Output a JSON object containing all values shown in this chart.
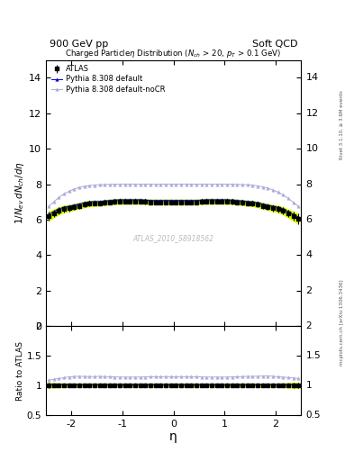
{
  "title_top_left": "900 GeV pp",
  "title_top_right": "Soft QCD",
  "plot_title": "Charged Particleη Distribution (N_{ch} > 20, p_{T} > 0.1 GeV)",
  "ylabel_main": "1/N_{ev} dN_{ch}/dη",
  "ylabel_ratio": "Ratio to ATLAS",
  "xlabel": "η",
  "right_label_top": "Rivet 3.1.10, ≥ 3.6M events",
  "right_label_bottom": "mcplots.cern.ch [arXiv:1306.3436]",
  "watermark": "ATLAS_2010_S8918562",
  "ylim_main": [
    0,
    15
  ],
  "ylim_ratio": [
    0.5,
    2.0
  ],
  "xlim": [
    -2.5,
    2.5
  ],
  "yticks_main": [
    0,
    2,
    4,
    6,
    8,
    10,
    12,
    14
  ],
  "yticks_ratio": [
    0.5,
    1.0,
    1.5,
    2.0
  ],
  "ytick_labels_ratio": [
    "0.5",
    "1",
    "1.5",
    "2"
  ],
  "legend_entries": [
    "ATLAS",
    "Pythia 8.308 default",
    "Pythia 8.308 default-noCR"
  ],
  "atlas_color": "#000000",
  "pythia_default_color": "#0000dd",
  "pythia_nocr_color": "#aaaadd",
  "band_color_atlas": "#ddff00",
  "band_color_pythia": "#88cc00",
  "eta_atlas": [
    -2.45,
    -2.35,
    -2.25,
    -2.15,
    -2.05,
    -1.95,
    -1.85,
    -1.75,
    -1.65,
    -1.55,
    -1.45,
    -1.35,
    -1.25,
    -1.15,
    -1.05,
    -0.95,
    -0.85,
    -0.75,
    -0.65,
    -0.55,
    -0.45,
    -0.35,
    -0.25,
    -0.15,
    -0.05,
    0.05,
    0.15,
    0.25,
    0.35,
    0.45,
    0.55,
    0.65,
    0.75,
    0.85,
    0.95,
    1.05,
    1.15,
    1.25,
    1.35,
    1.45,
    1.55,
    1.65,
    1.75,
    1.85,
    1.95,
    2.05,
    2.15,
    2.25,
    2.35,
    2.45
  ],
  "atlas_vals": [
    6.2,
    6.35,
    6.5,
    6.6,
    6.65,
    6.72,
    6.78,
    6.85,
    6.9,
    6.92,
    6.92,
    6.95,
    6.98,
    7.0,
    7.02,
    7.02,
    7.02,
    7.02,
    7.02,
    7.0,
    6.98,
    6.98,
    6.98,
    6.98,
    6.98,
    6.98,
    6.98,
    6.98,
    6.98,
    6.98,
    7.0,
    7.02,
    7.02,
    7.02,
    7.02,
    7.02,
    7.0,
    6.98,
    6.95,
    6.92,
    6.9,
    6.85,
    6.78,
    6.72,
    6.65,
    6.6,
    6.5,
    6.35,
    6.2,
    6.05
  ],
  "atlas_err": [
    0.25,
    0.22,
    0.2,
    0.18,
    0.17,
    0.16,
    0.15,
    0.15,
    0.14,
    0.13,
    0.13,
    0.12,
    0.12,
    0.12,
    0.12,
    0.12,
    0.12,
    0.12,
    0.12,
    0.12,
    0.12,
    0.12,
    0.12,
    0.12,
    0.12,
    0.12,
    0.12,
    0.12,
    0.12,
    0.12,
    0.12,
    0.12,
    0.12,
    0.12,
    0.12,
    0.12,
    0.12,
    0.12,
    0.12,
    0.13,
    0.13,
    0.14,
    0.15,
    0.16,
    0.17,
    0.18,
    0.2,
    0.22,
    0.25,
    0.28
  ],
  "pythia_default_vals": [
    6.3,
    6.45,
    6.6,
    6.7,
    6.75,
    6.82,
    6.88,
    6.95,
    7.0,
    7.02,
    7.02,
    7.05,
    7.08,
    7.1,
    7.12,
    7.12,
    7.12,
    7.12,
    7.12,
    7.1,
    7.08,
    7.08,
    7.08,
    7.08,
    7.08,
    7.08,
    7.08,
    7.08,
    7.08,
    7.08,
    7.1,
    7.12,
    7.12,
    7.12,
    7.12,
    7.12,
    7.1,
    7.08,
    7.05,
    7.02,
    7.0,
    6.95,
    6.88,
    6.82,
    6.75,
    6.7,
    6.6,
    6.45,
    6.3,
    6.15
  ],
  "pythia_nocr_vals": [
    6.75,
    7.0,
    7.25,
    7.45,
    7.6,
    7.72,
    7.82,
    7.88,
    7.92,
    7.95,
    7.97,
    7.98,
    7.99,
    8.0,
    8.0,
    8.0,
    8.0,
    8.0,
    8.0,
    8.0,
    8.0,
    8.0,
    8.0,
    8.0,
    8.0,
    8.0,
    8.0,
    8.0,
    8.0,
    8.0,
    8.0,
    8.0,
    8.0,
    8.0,
    8.0,
    8.0,
    8.0,
    7.99,
    7.98,
    7.97,
    7.95,
    7.9,
    7.85,
    7.78,
    7.68,
    7.55,
    7.4,
    7.2,
    6.98,
    6.75
  ]
}
